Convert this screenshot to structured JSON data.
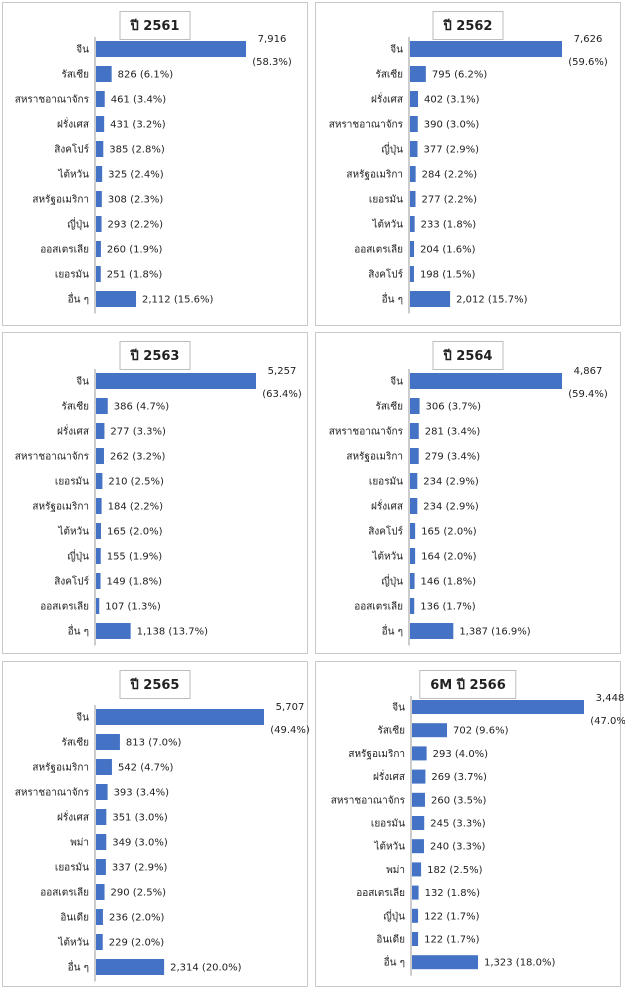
{
  "colors": {
    "bar": "#4472c4",
    "axis": "#9a9a9a"
  },
  "chart_data": [
    {
      "type": "bar",
      "title": "ปี 2561",
      "categories": [
        "จีน",
        "รัสเซีย",
        "สหราชอาณาจักร",
        "ฝรั่งเศส",
        "สิงคโปร์",
        "ไต้หวัน",
        "สหรัฐอเมริกา",
        "ญี่ปุ่น",
        "ออสเตรเลีย",
        "เยอรมัน",
        "อื่น ๆ"
      ],
      "values": [
        7916,
        826,
        461,
        431,
        385,
        325,
        308,
        293,
        260,
        251,
        2112
      ],
      "value_labels": [
        "7,916",
        "826",
        "461",
        "431",
        "385",
        "325",
        "308",
        "293",
        "260",
        "251",
        "2,112"
      ],
      "percent_labels": [
        "(58.3%)",
        "(6.1%)",
        "(3.4%)",
        "(3.2%)",
        "(2.8%)",
        "(2.4%)",
        "(2.3%)",
        "(2.2%)",
        "(1.9%)",
        "(1.8%)",
        "(15.6%)"
      ]
    },
    {
      "type": "bar",
      "title": "ปี 2562",
      "categories": [
        "จีน",
        "รัสเซีย",
        "ฝรั่งเศส",
        "สหราชอาณาจักร",
        "ญี่ปุ่น",
        "สหรัฐอเมริกา",
        "เยอรมัน",
        "ไต้หวัน",
        "ออสเตรเลีย",
        "สิงคโปร์",
        "อื่น ๆ"
      ],
      "values": [
        7626,
        795,
        402,
        390,
        377,
        284,
        277,
        233,
        204,
        198,
        2012
      ],
      "value_labels": [
        "7,626",
        "795",
        "402",
        "390",
        "377",
        "284",
        "277",
        "233",
        "204",
        "198",
        "2,012"
      ],
      "percent_labels": [
        "(59.6%)",
        "(6.2%)",
        "(3.1%)",
        "(3.0%)",
        "(2.9%)",
        "(2.2%)",
        "(2.2%)",
        "(1.8%)",
        "(1.6%)",
        "(1.5%)",
        "(15.7%)"
      ]
    },
    {
      "type": "bar",
      "title": "ปี 2563",
      "categories": [
        "จีน",
        "รัสเซีย",
        "ฝรั่งเศส",
        "สหราชอาณาจักร",
        "เยอรมัน",
        "สหรัฐอเมริกา",
        "ไต้หวัน",
        "ญี่ปุ่น",
        "สิงคโปร์",
        "ออสเตรเลีย",
        "อื่น ๆ"
      ],
      "values": [
        5257,
        386,
        277,
        262,
        210,
        184,
        165,
        155,
        149,
        107,
        1138
      ],
      "value_labels": [
        "5,257",
        "386",
        "277",
        "262",
        "210",
        "184",
        "165",
        "155",
        "149",
        "107",
        "1,138"
      ],
      "percent_labels": [
        "(63.4%)",
        "(4.7%)",
        "(3.3%)",
        "(3.2%)",
        "(2.5%)",
        "(2.2%)",
        "(2.0%)",
        "(1.9%)",
        "(1.8%)",
        "(1.3%)",
        "(13.7%)"
      ]
    },
    {
      "type": "bar",
      "title": "ปี 2564",
      "categories": [
        "จีน",
        "รัสเซีย",
        "สหราชอาณาจักร",
        "สหรัฐอเมริกา",
        "เยอรมัน",
        "ฝรั่งเศส",
        "สิงคโปร์",
        "ไต้หวัน",
        "ญี่ปุ่น",
        "ออสเตรเลีย",
        "อื่น ๆ"
      ],
      "values": [
        4867,
        306,
        281,
        279,
        234,
        234,
        165,
        164,
        146,
        136,
        1387
      ],
      "value_labels": [
        "4,867",
        "306",
        "281",
        "279",
        "234",
        "234",
        "165",
        "164",
        "146",
        "136",
        "1,387"
      ],
      "percent_labels": [
        "(59.4%)",
        "(3.7%)",
        "(3.4%)",
        "(3.4%)",
        "(2.9%)",
        "(2.9%)",
        "(2.0%)",
        "(2.0%)",
        "(1.8%)",
        "(1.7%)",
        "(16.9%)"
      ]
    },
    {
      "type": "bar",
      "title": "ปี 2565",
      "categories": [
        "จีน",
        "รัสเซีย",
        "สหรัฐอเมริกา",
        "สหราชอาณาจักร",
        "ฝรั่งเศส",
        "พม่า",
        "เยอรมัน",
        "ออสเตรเลีย",
        "อินเดีย",
        "ไต้หวัน",
        "อื่น ๆ"
      ],
      "values": [
        5707,
        813,
        542,
        393,
        351,
        349,
        337,
        290,
        236,
        229,
        2314
      ],
      "value_labels": [
        "5,707",
        "813",
        "542",
        "393",
        "351",
        "349",
        "337",
        "290",
        "236",
        "229",
        "2,314"
      ],
      "percent_labels": [
        "(49.4%)",
        "(7.0%)",
        "(4.7%)",
        "(3.4%)",
        "(3.0%)",
        "(3.0%)",
        "(2.9%)",
        "(2.5%)",
        "(2.0%)",
        "(2.0%)",
        "(20.0%)"
      ]
    },
    {
      "type": "bar",
      "title": "6M ปี 2566",
      "categories": [
        "จีน",
        "รัสเซีย",
        "สหรัฐอเมริกา",
        "ฝรั่งเศส",
        "สหราชอาณาจักร",
        "เยอรมัน",
        "ไต้หวัน",
        "พม่า",
        "ออสเตรเลีย",
        "ญี่ปุ่น",
        "อินเดีย",
        "อื่น ๆ"
      ],
      "values": [
        3448,
        702,
        293,
        269,
        260,
        245,
        240,
        182,
        132,
        122,
        122,
        1323
      ],
      "value_labels": [
        "3,448",
        "702",
        "293",
        "269",
        "260",
        "245",
        "240",
        "182",
        "132",
        "122",
        "122",
        "1,323"
      ],
      "percent_labels": [
        "(47.0%)",
        "(9.6%)",
        "(4.0%)",
        "(3.7%)",
        "(3.5%)",
        "(3.3%)",
        "(3.3%)",
        "(2.5%)",
        "(1.8%)",
        "(1.7%)",
        "(1.7%)",
        "(18.0%)"
      ]
    }
  ]
}
